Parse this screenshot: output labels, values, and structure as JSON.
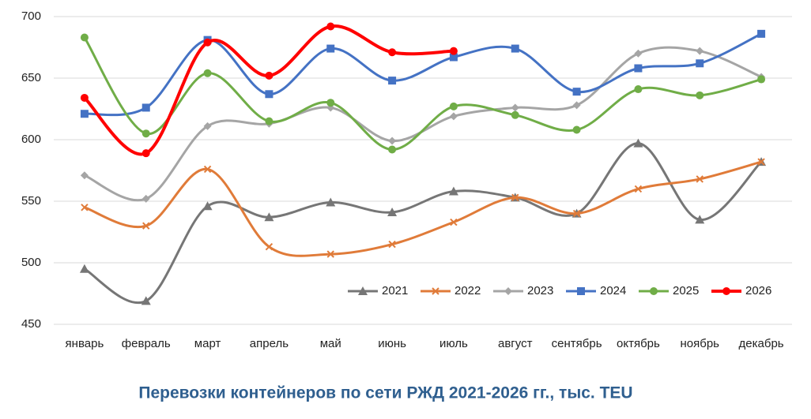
{
  "chart_data": {
    "type": "line",
    "title": "Перевозки контейнеров по сети РЖД 2021-2026 гг., тыс. TEU",
    "categories": [
      "январь",
      "февраль",
      "март",
      "апрель",
      "май",
      "июнь",
      "июль",
      "август",
      "сентябрь",
      "октябрь",
      "ноябрь",
      "декабрь"
    ],
    "ylim": [
      450,
      700
    ],
    "yticks": [
      450,
      500,
      550,
      600,
      650,
      700
    ],
    "grid": true,
    "smooth": true,
    "legend": "bottom-right",
    "series": [
      {
        "name": "2021",
        "color": "#767676",
        "marker": "triangle",
        "values": [
          495,
          469,
          546,
          537,
          549,
          541,
          558,
          553,
          540,
          597,
          535,
          582
        ]
      },
      {
        "name": "2022",
        "color": "#e07b39",
        "marker": "cross",
        "values": [
          545,
          530,
          576,
          513,
          507,
          515,
          533,
          553,
          540,
          560,
          568,
          582
        ]
      },
      {
        "name": "2023",
        "color": "#a5a5a5",
        "marker": "diamond",
        "values": [
          571,
          552,
          611,
          613,
          626,
          599,
          619,
          626,
          628,
          670,
          672,
          651
        ]
      },
      {
        "name": "2024",
        "color": "#4472c4",
        "marker": "square",
        "values": [
          621,
          626,
          681,
          637,
          674,
          648,
          667,
          674,
          639,
          658,
          662,
          686
        ]
      },
      {
        "name": "2025",
        "color": "#70ad47",
        "marker": "circle",
        "values": [
          683,
          605,
          654,
          615,
          630,
          592,
          627,
          620,
          608,
          641,
          636,
          649
        ]
      },
      {
        "name": "2026",
        "color": "#ff0000",
        "marker": "circle",
        "values": [
          634,
          589,
          679,
          652,
          692,
          671,
          672,
          null,
          null,
          null,
          null,
          null
        ]
      }
    ]
  }
}
